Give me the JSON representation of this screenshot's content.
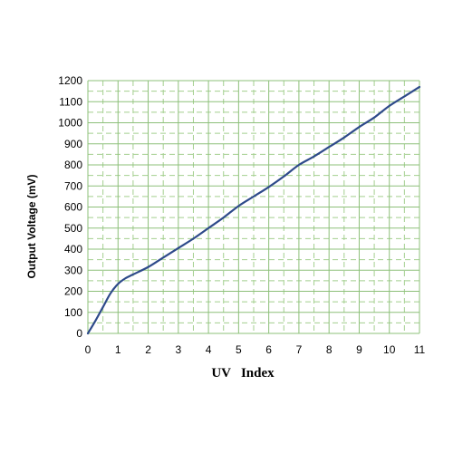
{
  "chart_data": {
    "type": "line",
    "title": "",
    "xlabel": "UV   Index",
    "ylabel": "Output Voltage (mV)",
    "xlim": [
      0,
      11
    ],
    "ylim": [
      0,
      1200
    ],
    "x_ticks": [
      "0",
      "1",
      "2",
      "3",
      "4",
      "5",
      "6",
      "7",
      "8",
      "9",
      "10",
      "11"
    ],
    "y_ticks": [
      "0",
      "100",
      "200",
      "300",
      "400",
      "500",
      "600",
      "700",
      "800",
      "900",
      "1000",
      "1100",
      "1200"
    ],
    "grid": true,
    "grid_minor_dashed": true,
    "legend": "none",
    "series": [
      {
        "color": "#2e4a8a",
        "x": [
          0,
          0.25,
          0.5,
          0.75,
          1.0,
          1.25,
          1.5,
          2,
          2.5,
          3,
          3.5,
          4,
          4.5,
          5,
          5.5,
          6,
          6.5,
          7,
          7.5,
          8,
          8.5,
          9,
          9.5,
          10,
          10.5,
          11
        ],
        "y": [
          0,
          60,
          125,
          190,
          235,
          262,
          280,
          315,
          360,
          405,
          450,
          500,
          550,
          605,
          650,
          695,
          745,
          800,
          840,
          885,
          930,
          980,
          1025,
          1080,
          1125,
          1170
        ]
      }
    ]
  },
  "colors": {
    "grid_major": "#8dc07a",
    "grid_minor": "#a4cf8f",
    "line": "#2e4a8a",
    "background": "#ffffff"
  }
}
